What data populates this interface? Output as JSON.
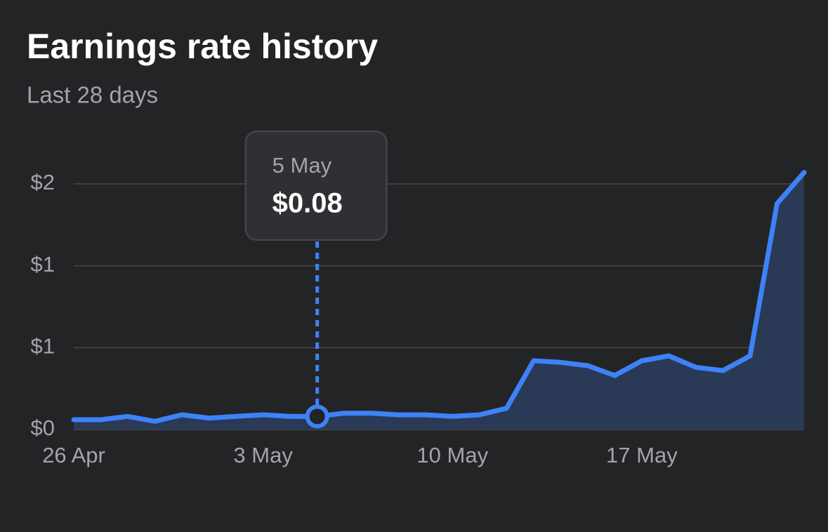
{
  "chart_data": {
    "type": "area-line",
    "title": "Earnings rate history",
    "subtitle": "Last 28 days",
    "categories": [
      "26 Apr",
      null,
      null,
      null,
      null,
      null,
      null,
      "3 May",
      null,
      "5 May",
      null,
      null,
      null,
      null,
      "10 May",
      null,
      null,
      null,
      null,
      null,
      null,
      "17 May",
      null,
      null,
      null,
      null,
      null,
      null
    ],
    "values": [
      0.06,
      0.06,
      0.08,
      0.05,
      0.09,
      0.07,
      0.08,
      0.09,
      0.08,
      0.08,
      0.1,
      0.1,
      0.09,
      0.09,
      0.08,
      0.09,
      0.13,
      0.42,
      0.41,
      0.39,
      0.33,
      0.42,
      0.45,
      0.38,
      0.36,
      0.45,
      1.38,
      1.57
    ],
    "value_labels": [
      null,
      null,
      null,
      null,
      null,
      null,
      null,
      null,
      null,
      "$0.08",
      null,
      null,
      null,
      null,
      null,
      null,
      null,
      null,
      null,
      null,
      null,
      null,
      null,
      null,
      null,
      null,
      null,
      null
    ],
    "color": "#3d82f7",
    "area_color": "#2a3955",
    "ylim": [
      0,
      1.6
    ],
    "yticks": [
      {
        "value": 0,
        "label": "$0"
      },
      {
        "value": 0.5,
        "label": "$1"
      },
      {
        "value": 1,
        "label": "$1"
      },
      {
        "value": 1.5,
        "label": "$2"
      }
    ],
    "grid": true
  }
}
